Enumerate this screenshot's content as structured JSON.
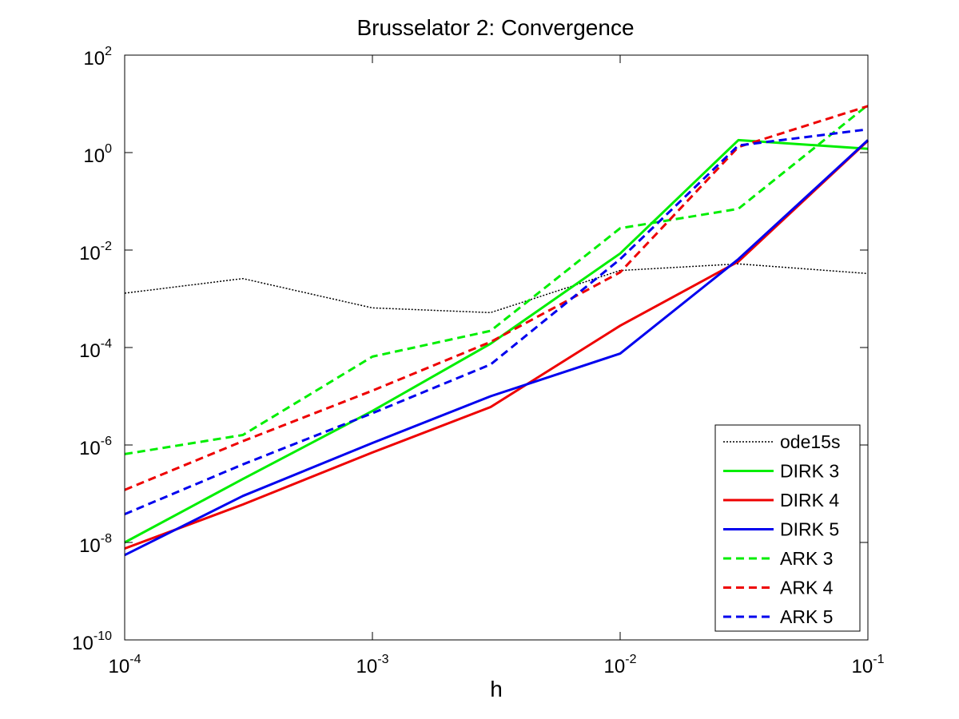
{
  "chart_data": {
    "type": "line",
    "title": "Brusselator 2: Convergence",
    "xlabel": "h",
    "ylabel": "",
    "x_scale": "log",
    "y_scale": "log",
    "xlim": [
      0.0001,
      0.1
    ],
    "ylim": [
      1e-10,
      100
    ],
    "grid": false,
    "legend_position": "bottom-right",
    "x_ticks": [
      {
        "base": "10",
        "exp": "-4",
        "value": 0.0001
      },
      {
        "base": "10",
        "exp": "-3",
        "value": 0.001
      },
      {
        "base": "10",
        "exp": "-2",
        "value": 0.01
      },
      {
        "base": "10",
        "exp": "-1",
        "value": 0.1
      }
    ],
    "y_ticks": [
      {
        "base": "10",
        "exp": "-10",
        "value": 1e-10
      },
      {
        "base": "10",
        "exp": "-8",
        "value": 1e-08
      },
      {
        "base": "10",
        "exp": "-6",
        "value": 1e-06
      },
      {
        "base": "10",
        "exp": "-4",
        "value": 0.0001
      },
      {
        "base": "10",
        "exp": "-2",
        "value": 0.01
      },
      {
        "base": "10",
        "exp": "0",
        "value": 1
      },
      {
        "base": "10",
        "exp": "2",
        "value": 100
      }
    ],
    "x": [
      0.0001,
      0.0003,
      0.001,
      0.003,
      0.01,
      0.03,
      0.1
    ],
    "series": [
      {
        "name": "ode15s",
        "color": "#000000",
        "style": "dotted",
        "width": 1.5,
        "values": [
          0.0013,
          0.0026,
          0.00065,
          0.00052,
          0.0038,
          0.0052,
          0.0033
        ]
      },
      {
        "name": "DIRK 3",
        "color": "#00ee00",
        "style": "solid",
        "width": 3,
        "values": [
          1e-08,
          2e-07,
          5e-06,
          0.00012,
          0.0085,
          1.8,
          1.2
        ]
      },
      {
        "name": "DIRK 4",
        "color": "#ee0000",
        "style": "solid",
        "width": 3,
        "values": [
          7.5e-09,
          6e-08,
          7e-07,
          6e-06,
          0.00028,
          0.0058,
          1.75
        ]
      },
      {
        "name": "DIRK 5",
        "color": "#0000ee",
        "style": "solid",
        "width": 3,
        "values": [
          5.5e-09,
          9e-08,
          1.1e-06,
          1e-05,
          7.5e-05,
          0.0065,
          1.8
        ]
      },
      {
        "name": "ARK 3",
        "color": "#00ee00",
        "style": "dashed",
        "width": 3,
        "values": [
          6.5e-07,
          1.6e-06,
          6.5e-05,
          0.00022,
          0.028,
          0.07,
          9.5
        ]
      },
      {
        "name": "ARK 4",
        "color": "#ee0000",
        "style": "dashed",
        "width": 3,
        "values": [
          1.2e-07,
          1.2e-06,
          1.3e-05,
          0.00013,
          0.0035,
          1.3,
          9.0
        ]
      },
      {
        "name": "ARK 5",
        "color": "#0000ee",
        "style": "dashed",
        "width": 3,
        "values": [
          3.8e-08,
          4e-07,
          4.5e-06,
          4.5e-05,
          0.0065,
          1.4,
          3.0
        ]
      }
    ]
  }
}
